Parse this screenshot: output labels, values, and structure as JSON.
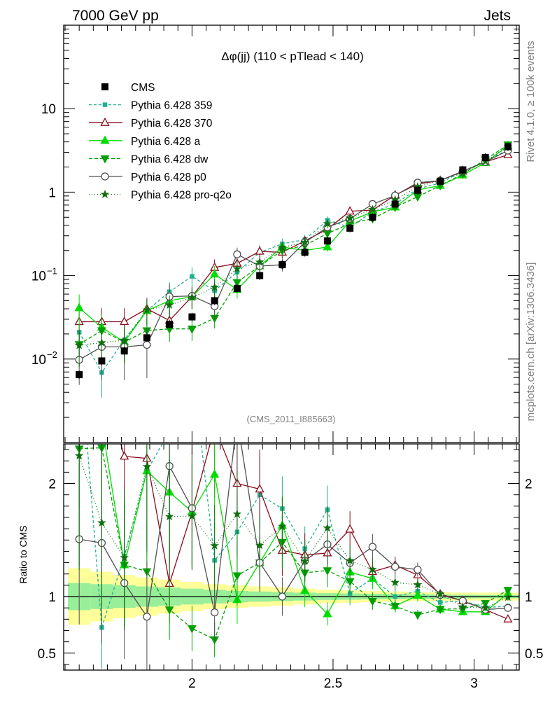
{
  "header": {
    "left": "7000 GeV pp",
    "right": "Jets"
  },
  "side_labels": {
    "rivet": "Rivet 4.1.0, ≥ 100k events",
    "mcplots": "mcplots.cern.ch [arXiv:1306.3436]"
  },
  "chart_data": {
    "type": "line",
    "title": "Δφ(jj) (110 < pTlead <  140)",
    "analysis_id": "(CMS_2011_I885663)",
    "xlabel": "",
    "ylabel_main": "",
    "ylabel_ratio": "Ratio to CMS",
    "main_scale": "log",
    "main_ylim": [
      0.001,
      100
    ],
    "main_yticks": [
      {
        "value": 0.01,
        "label": "10",
        "exp": "−2"
      },
      {
        "value": 0.1,
        "label": "10",
        "exp": "−1"
      },
      {
        "value": 1,
        "label": "1",
        "exp": ""
      },
      {
        "value": 10,
        "label": "10",
        "exp": ""
      }
    ],
    "ratio_ylim": [
      0.35,
      2.35
    ],
    "ratio_yticks": [
      {
        "value": 0.5,
        "label": "0.5"
      },
      {
        "value": 1,
        "label": "1"
      },
      {
        "value": 2,
        "label": "2"
      }
    ],
    "xlim": [
      1.545,
      3.16
    ],
    "xticks": [
      {
        "value": 2,
        "label": "2"
      },
      {
        "value": 2.5,
        "label": "2.5"
      },
      {
        "value": 3,
        "label": "3"
      }
    ],
    "x": [
      1.6,
      1.68,
      1.76,
      1.84,
      1.92,
      2.0,
      2.08,
      2.16,
      2.24,
      2.32,
      2.4,
      2.48,
      2.56,
      2.64,
      2.72,
      2.8,
      2.88,
      2.96,
      3.04,
      3.12
    ],
    "data_series": {
      "name": "CMS",
      "values": [
        0.0065,
        0.0095,
        0.0125,
        0.018,
        0.026,
        0.032,
        0.05,
        0.07,
        0.1,
        0.135,
        0.19,
        0.26,
        0.37,
        0.5,
        0.72,
        1.05,
        1.35,
        1.85,
        2.6,
        3.5
      ],
      "band_inner": [
        0.12,
        0.11,
        0.1,
        0.09,
        0.08,
        0.07,
        0.06,
        0.05,
        0.045,
        0.04,
        0.035,
        0.03,
        0.028,
        0.025,
        0.022,
        0.02,
        0.018,
        0.016,
        0.015,
        0.015
      ],
      "band_outer": [
        0.25,
        0.22,
        0.19,
        0.17,
        0.15,
        0.13,
        0.11,
        0.1,
        0.09,
        0.08,
        0.07,
        0.06,
        0.055,
        0.05,
        0.045,
        0.04,
        0.04,
        0.035,
        0.035,
        0.035
      ]
    },
    "series": [
      {
        "name": "Pythia 6.428 359",
        "color": "#20b090",
        "dash": "4,3",
        "marker": "square",
        "values": [
          0.021,
          0.0069,
          0.017,
          0.038,
          0.064,
          0.098,
          0.066,
          0.11,
          0.19,
          0.24,
          0.27,
          0.46,
          0.38,
          0.58,
          0.72,
          1.1,
          1.28,
          1.78,
          2.35,
          3.2
        ],
        "err": [
          0.45,
          0.5,
          0.45,
          0.35,
          0.3,
          0.28,
          0.25,
          0.22,
          0.18,
          0.16,
          0.14,
          0.12,
          0.1,
          0.08,
          0.06,
          0.05,
          0.04,
          0.03,
          0.03,
          0.03
        ]
      },
      {
        "name": "Pythia 6.428 370",
        "color": "#8b0a1e",
        "dash": "",
        "marker": "triangle-open",
        "values": [
          0.028,
          0.028,
          0.028,
          0.04,
          0.029,
          0.056,
          0.125,
          0.14,
          0.195,
          0.19,
          0.26,
          0.36,
          0.59,
          0.61,
          0.92,
          1.25,
          1.38,
          1.78,
          2.3,
          2.8
        ],
        "err": [
          0.45,
          0.45,
          0.45,
          0.35,
          0.3,
          0.28,
          0.25,
          0.22,
          0.18,
          0.16,
          0.14,
          0.12,
          0.1,
          0.08,
          0.06,
          0.05,
          0.04,
          0.03,
          0.03,
          0.03
        ]
      },
      {
        "name": "Pythia 6.428 a",
        "color": "#00dd00",
        "dash": "",
        "marker": "triangle",
        "values": [
          0.041,
          0.024,
          0.016,
          0.038,
          0.05,
          0.056,
          0.104,
          0.068,
          0.13,
          0.22,
          0.2,
          0.22,
          0.45,
          0.58,
          0.66,
          1.06,
          1.2,
          1.6,
          2.25,
          3.6
        ],
        "err": [
          0.45,
          0.45,
          0.45,
          0.35,
          0.3,
          0.28,
          0.25,
          0.22,
          0.18,
          0.16,
          0.14,
          0.12,
          0.1,
          0.08,
          0.06,
          0.05,
          0.04,
          0.03,
          0.03,
          0.03
        ]
      },
      {
        "name": "Pythia 6.428 dw",
        "color": "#00a000",
        "dash": "5,3",
        "marker": "triangle-down",
        "values": [
          0.015,
          0.022,
          0.016,
          0.022,
          0.023,
          0.023,
          0.031,
          0.083,
          0.13,
          0.2,
          0.23,
          0.32,
          0.42,
          0.48,
          0.66,
          0.88,
          1.2,
          1.65,
          2.45,
          3.7
        ],
        "err": [
          0.45,
          0.45,
          0.45,
          0.35,
          0.3,
          0.28,
          0.25,
          0.22,
          0.18,
          0.16,
          0.14,
          0.12,
          0.1,
          0.08,
          0.06,
          0.05,
          0.04,
          0.03,
          0.03,
          0.03
        ]
      },
      {
        "name": "Pythia 6.428 p0",
        "color": "#505050",
        "dash": "",
        "marker": "circle-open",
        "values": [
          0.0098,
          0.014,
          0.014,
          0.0148,
          0.056,
          0.057,
          0.043,
          0.18,
          0.13,
          0.135,
          0.25,
          0.38,
          0.48,
          0.72,
          0.91,
          1.3,
          1.37,
          1.78,
          2.3,
          3.15
        ],
        "err": [
          0.5,
          0.6,
          0.6,
          0.6,
          0.4,
          0.3,
          0.3,
          0.2,
          0.2,
          0.17,
          0.14,
          0.12,
          0.1,
          0.08,
          0.06,
          0.05,
          0.04,
          0.03,
          0.03,
          0.03
        ]
      },
      {
        "name": "Pythia 6.428 pro-q2o",
        "color": "#107010",
        "dash": "1,3",
        "marker": "star",
        "values": [
          0.0146,
          0.0157,
          0.0168,
          0.0387,
          0.0444,
          0.0548,
          0.0725,
          0.1211,
          0.1453,
          0.2189,
          0.2496,
          0.4178,
          0.4876,
          0.62,
          0.81,
          1.16,
          1.38,
          1.68,
          2.34,
          3.48
        ],
        "err": [
          0.45,
          0.45,
          0.45,
          0.35,
          0.3,
          0.28,
          0.25,
          0.22,
          0.18,
          0.16,
          0.14,
          0.12,
          0.1,
          0.08,
          0.06,
          0.05,
          0.04,
          0.03,
          0.03,
          0.03
        ]
      }
    ]
  }
}
